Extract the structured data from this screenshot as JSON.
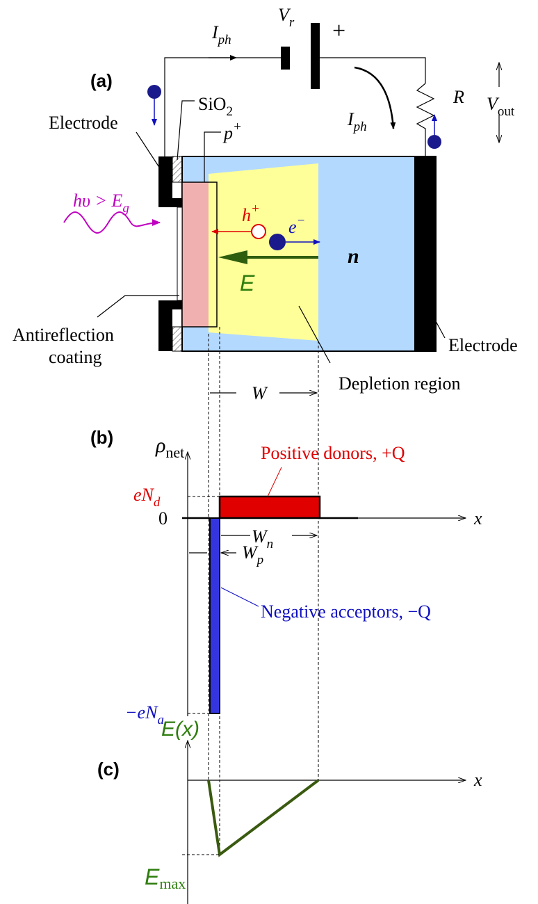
{
  "panel_a": {
    "label": "(a)",
    "current_top": {
      "base": "I",
      "sub": "ph"
    },
    "current_right": {
      "base": "I",
      "sub": "ph"
    },
    "battery": {
      "base": "V",
      "sub": "r"
    },
    "battery_plus": "+",
    "resistor": "R",
    "output": {
      "base": "V",
      "sub": "out"
    },
    "oxide": {
      "base": "SiO",
      "sub": "2"
    },
    "electrode_left": "Electrode",
    "p_region": {
      "base": "p",
      "sup": "+"
    },
    "photon": {
      "base": "hυ > E",
      "sub": "g"
    },
    "hole": {
      "base": "h",
      "sup": "+"
    },
    "electron": {
      "base": "e",
      "sup": "−"
    },
    "n_region": "n",
    "field": "E",
    "coating": [
      "Antireflection",
      "coating"
    ],
    "electrode_right": "Electrode",
    "depletion": "Depletion region",
    "width": "W"
  },
  "panel_b": {
    "label": "(b)",
    "y_axis": {
      "base": "ρ",
      "sub": "net"
    },
    "donors": "Positive donors, +Q",
    "donor_level": {
      "base": "eN",
      "sub": "d"
    },
    "zero": "0",
    "x_axis": "x",
    "width_n": {
      "base": "W",
      "sub": "n"
    },
    "width_p": {
      "base": "W",
      "sub": "p"
    },
    "acceptors": "Negative acceptors, −Q",
    "acceptor_level": {
      "base": "−eN",
      "sub": "a"
    }
  },
  "panel_c": {
    "label": "(c)",
    "y_axis": "E(x)",
    "x_axis": "x",
    "max": {
      "base": "E",
      "sub": "max"
    }
  }
}
